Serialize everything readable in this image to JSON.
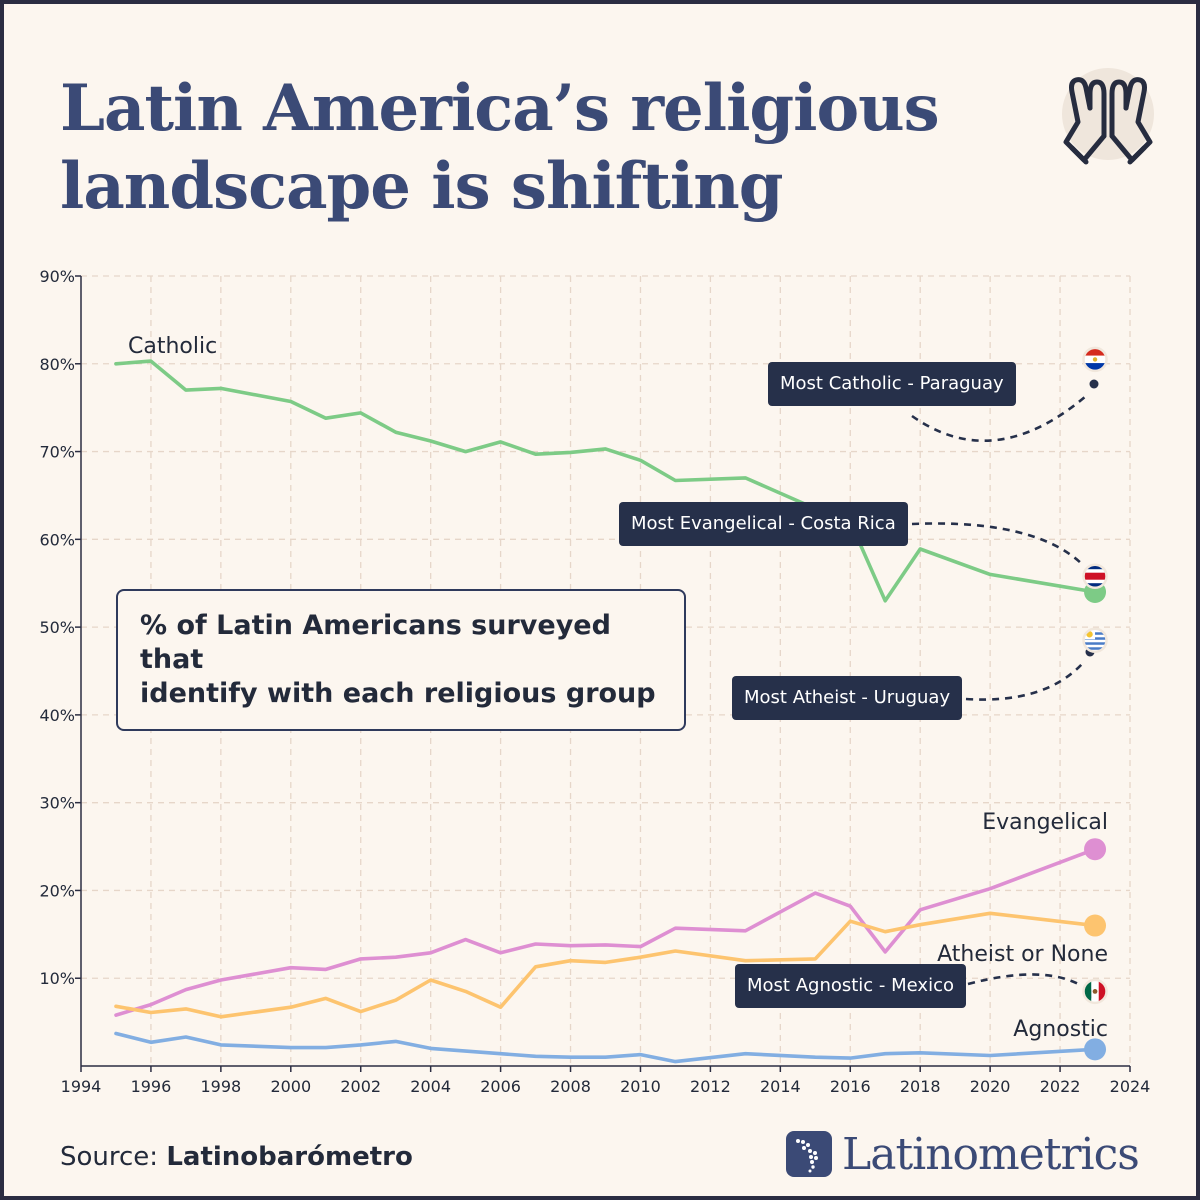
{
  "title_line1": "Latin America’s religious",
  "title_line2": "landscape is shifting",
  "annotation": "% of Latin Americans surveyed  that\nidentify with each religious group",
  "source_label": "Source: ",
  "source_name": "Latinobarómetro",
  "brand": "Latinometrics",
  "icon": "praying-hands-icon",
  "callouts": {
    "paraguay": "Most Catholic - Paraguay",
    "costa_rica": "Most Evangelical - Costa Rica",
    "uruguay": "Most Atheist - Uruguay",
    "mexico": "Most Agnostic - Mexico"
  },
  "chart_data": {
    "type": "line",
    "xlim": [
      1994,
      2024
    ],
    "ylim": [
      0,
      90
    ],
    "x_ticks": [
      "1994",
      "1996",
      "1998",
      "2000",
      "2002",
      "2004",
      "2006",
      "2008",
      "2010",
      "2012",
      "2014",
      "2016",
      "2018",
      "2020",
      "2022",
      "2024"
    ],
    "y_ticks": [
      "10%",
      "20%",
      "30%",
      "40%",
      "50%",
      "60%",
      "70%",
      "80%",
      "90%"
    ],
    "grid": true,
    "series": [
      {
        "name": "Catholic",
        "color": "#7dcb86",
        "x": [
          1995,
          1996,
          1997,
          1998,
          2000,
          2001,
          2002,
          2003,
          2004,
          2005,
          2006,
          2007,
          2008,
          2009,
          2010,
          2011,
          2013,
          2015,
          2016,
          2017,
          2018,
          2020,
          2023
        ],
        "y": [
          80,
          80.3,
          77,
          77.2,
          75.7,
          73.8,
          74.4,
          72.2,
          71.2,
          70,
          71.1,
          69.7,
          69.9,
          70.3,
          69,
          66.7,
          67,
          63.5,
          62,
          53,
          58.9,
          56,
          54
        ]
      },
      {
        "name": "Evangelical",
        "color": "#de8fd2",
        "x": [
          1995,
          1996,
          1997,
          1998,
          2000,
          2001,
          2002,
          2003,
          2004,
          2005,
          2006,
          2007,
          2008,
          2009,
          2010,
          2011,
          2013,
          2015,
          2016,
          2017,
          2018,
          2020,
          2023
        ],
        "y": [
          5.8,
          7,
          8.7,
          9.8,
          11.2,
          11,
          12.2,
          12.4,
          12.9,
          14.4,
          12.9,
          13.9,
          13.7,
          13.8,
          13.6,
          15.7,
          15.4,
          19.7,
          18.2,
          13,
          17.8,
          20.2,
          24.7
        ]
      },
      {
        "name": "Atheist or None",
        "color": "#fdc46f",
        "x": [
          1995,
          1996,
          1997,
          1998,
          2000,
          2001,
          2002,
          2003,
          2004,
          2005,
          2006,
          2007,
          2008,
          2009,
          2010,
          2011,
          2013,
          2015,
          2016,
          2017,
          2018,
          2020,
          2023
        ],
        "y": [
          6.8,
          6.1,
          6.5,
          5.6,
          6.7,
          7.7,
          6.2,
          7.5,
          9.8,
          8.5,
          6.7,
          11.3,
          12,
          11.8,
          12.4,
          13.1,
          12,
          12.2,
          16.5,
          15.3,
          16.1,
          17.4,
          16
        ]
      },
      {
        "name": "Agnostic",
        "color": "#82aee2",
        "x": [
          1995,
          1996,
          1997,
          1998,
          2000,
          2001,
          2002,
          2003,
          2004,
          2005,
          2006,
          2007,
          2008,
          2009,
          2010,
          2011,
          2013,
          2015,
          2016,
          2017,
          2018,
          2020,
          2023
        ],
        "y": [
          3.7,
          2.7,
          3.3,
          2.4,
          2.1,
          2.1,
          2.4,
          2.8,
          2,
          1.7,
          1.4,
          1.1,
          1,
          1,
          1.3,
          0.5,
          1.4,
          1,
          0.9,
          1.4,
          1.5,
          1.2,
          1.9
        ]
      }
    ],
    "country_markers": [
      {
        "country": "Paraguay",
        "x": 2023,
        "y": 80.5
      },
      {
        "country": "Costa Rica",
        "x": 2023,
        "y": 55.8
      },
      {
        "country": "Uruguay",
        "x": 2023,
        "y": 48.5
      },
      {
        "country": "Mexico",
        "x": 2023,
        "y": 8.5
      }
    ]
  }
}
